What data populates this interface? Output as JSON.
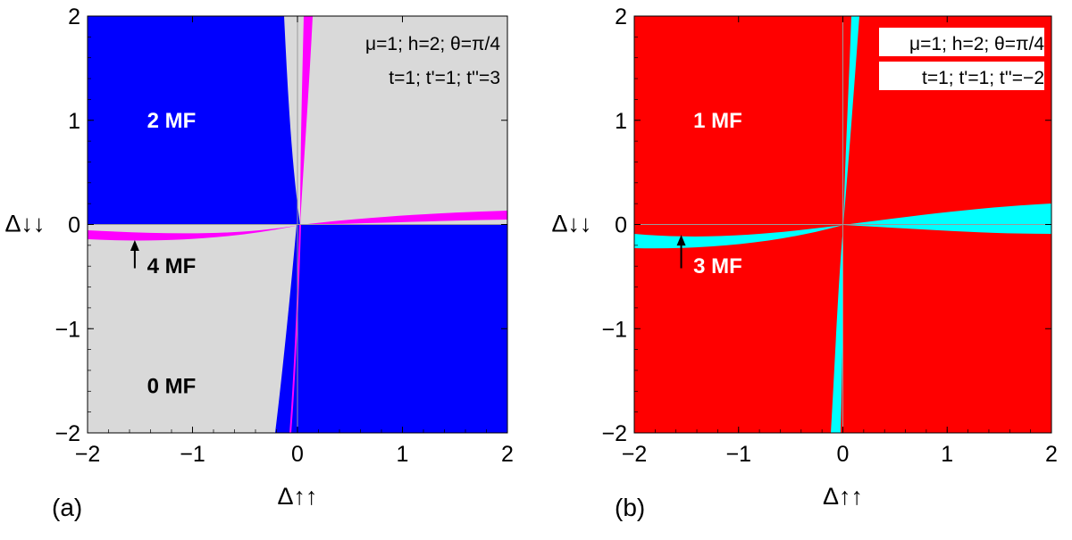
{
  "chart_data": [
    {
      "type": "heatmap",
      "panel_label": "(a)",
      "xlabel": "Δ↑↑",
      "ylabel": "Δ↓↓",
      "xlim": [
        -2,
        2
      ],
      "ylim": [
        -2,
        2
      ],
      "xticks": [
        "−2",
        "−1",
        "0",
        "1",
        "2"
      ],
      "yticks": [
        "−2",
        "−1",
        "0",
        "1",
        "2"
      ],
      "params": [
        "μ=1; h=2; θ=π/4",
        "t=1; t'=1; t''=3"
      ],
      "regions": [
        {
          "label": "2 MF",
          "color": "#0000ff",
          "quadrants": [
            "x<0,y>0",
            "x>0,y<0"
          ]
        },
        {
          "label": "0 MF",
          "color": "#d9d9d9",
          "quadrants": [
            "x<0,y<0",
            "x>0,y>0"
          ]
        },
        {
          "label": "4 MF",
          "color": "#ff00ff",
          "shape": "thin band along y≈0.05x-0.1 and x≈0.05y+0.1"
        }
      ],
      "annotations": [
        {
          "text": "2 MF",
          "x": -1.2,
          "y": 1.0
        },
        {
          "text": "4 MF",
          "x": -1.2,
          "y": -0.4
        },
        {
          "text": "0 MF",
          "x": -1.2,
          "y": -1.55
        }
      ],
      "arrow": {
        "from": [
          -1.55,
          -0.42
        ],
        "to": [
          -1.55,
          -0.15
        ]
      },
      "grid": "axes lines at x=0 and y=0"
    },
    {
      "type": "heatmap",
      "panel_label": "(b)",
      "xlabel": "Δ↑↑",
      "ylabel": "Δ↓↓",
      "xlim": [
        -2,
        2
      ],
      "ylim": [
        -2,
        2
      ],
      "xticks": [
        "−2",
        "−1",
        "0",
        "1",
        "2"
      ],
      "yticks": [
        "−2",
        "−1",
        "0",
        "1",
        "2"
      ],
      "params": [
        "μ=1; h=2; θ=π/4",
        "t=1; t'=1; t''=−2"
      ],
      "regions": [
        {
          "label": "1 MF",
          "color": "#ff0000",
          "quadrants": [
            "all"
          ]
        },
        {
          "label": "3 MF",
          "color": "#00ffff",
          "shape": "thin bands along y≈0.1x-0.15 and x≈0.1y+0.1"
        }
      ],
      "annotations": [
        {
          "text": "1 MF",
          "x": -1.2,
          "y": 1.0
        },
        {
          "text": "3 MF",
          "x": -1.2,
          "y": -0.4
        }
      ],
      "arrow": {
        "from": [
          -1.55,
          -0.42
        ],
        "to": [
          -1.55,
          -0.1
        ]
      },
      "grid": "axes lines at x=0 and y=0"
    }
  ],
  "colors": {
    "blue": "#0000ff",
    "gray": "#d9d9d9",
    "magenta": "#ff00ff",
    "red": "#ff0000",
    "cyan": "#00ffff"
  }
}
